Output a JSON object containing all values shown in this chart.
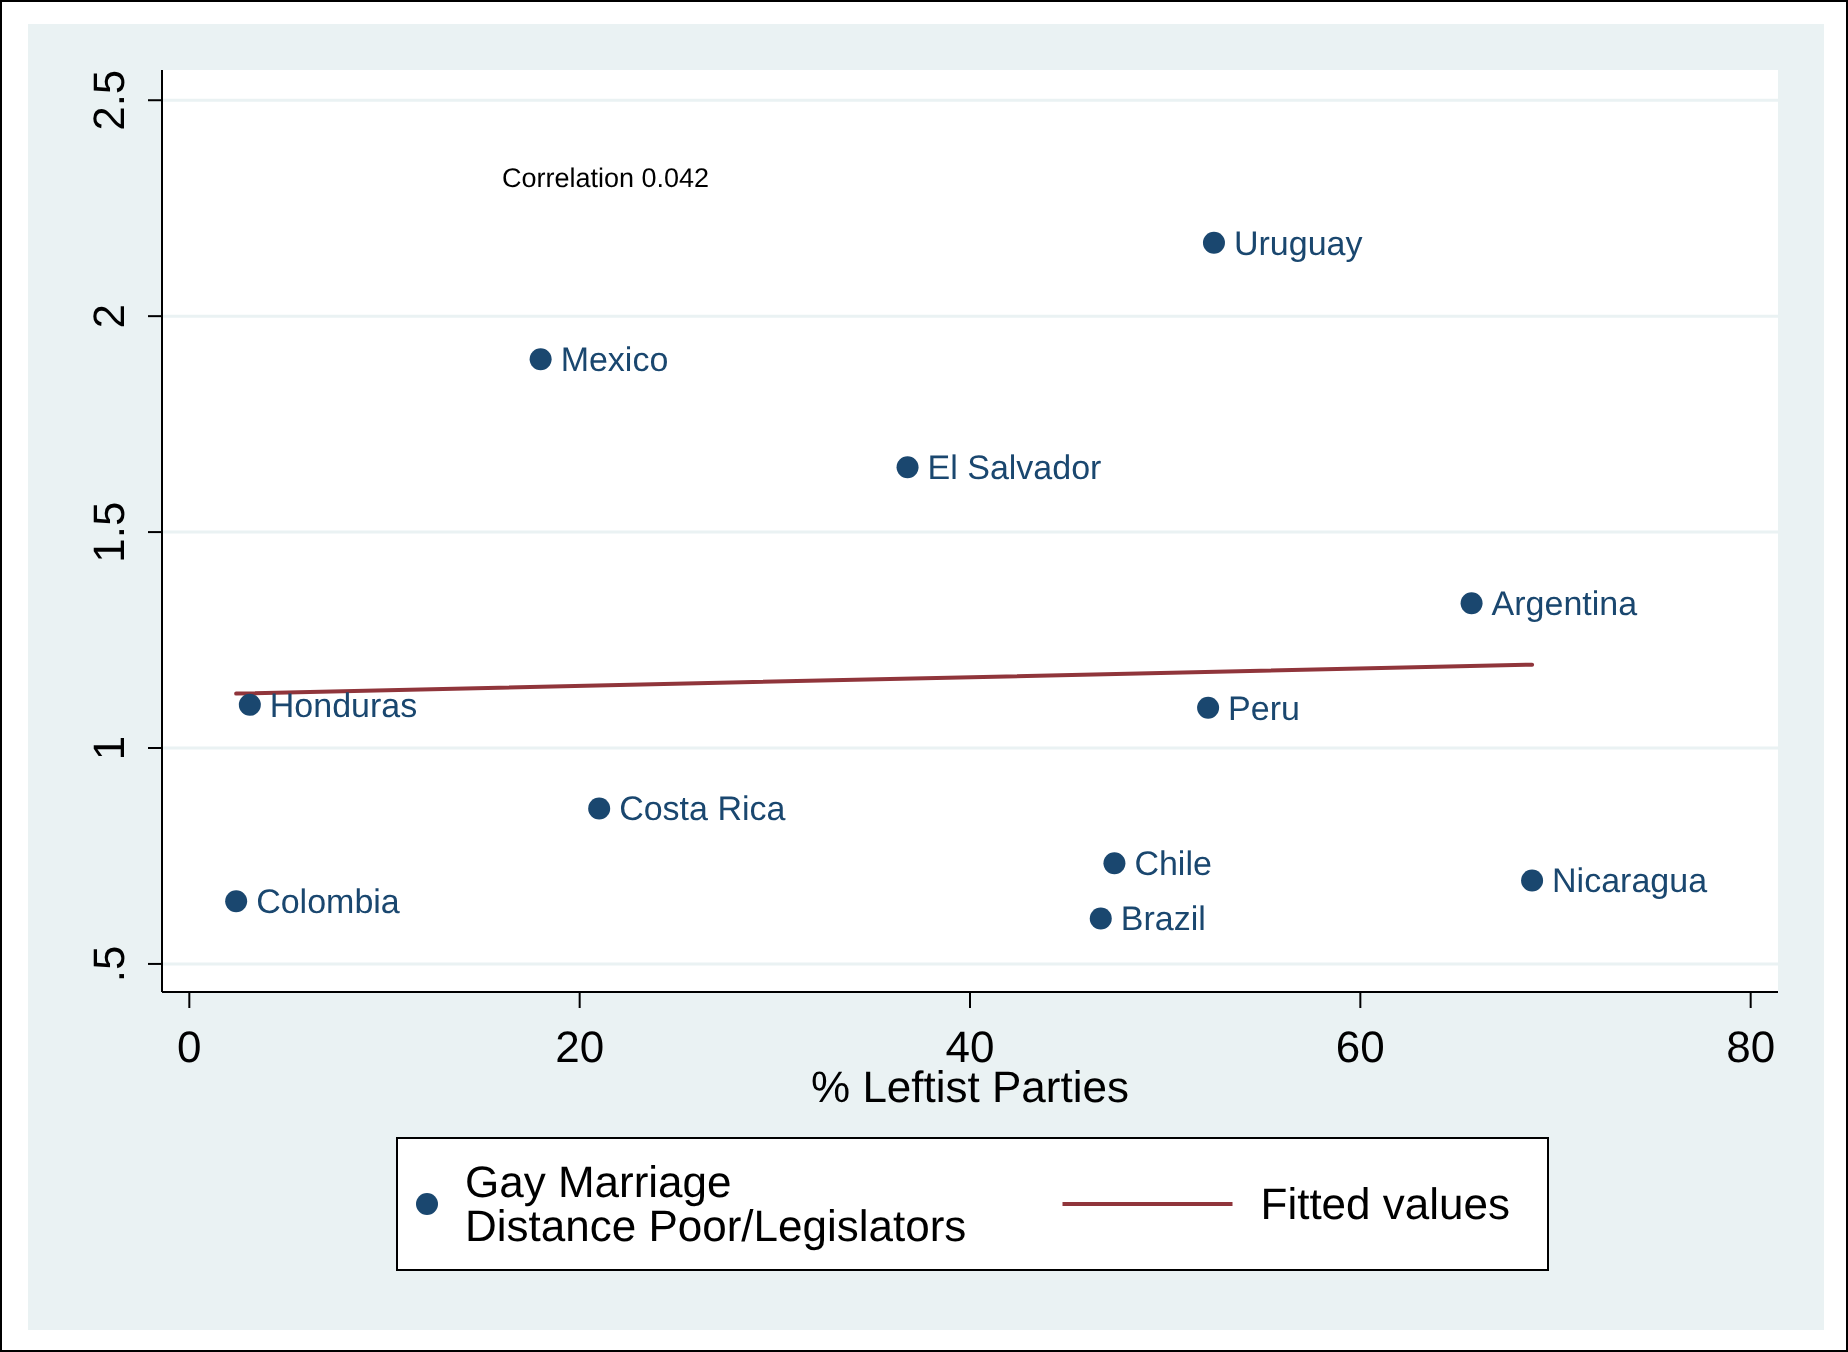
{
  "chart_data": {
    "type": "scatter",
    "xlabel": "% Leftist Parties",
    "xlim": [
      -1.4,
      81.4
    ],
    "ylim": [
      0.435,
      2.57
    ],
    "xticks": [
      0,
      20,
      40,
      60,
      80
    ],
    "yticks": [
      {
        "value": 0.5,
        "label": ".5"
      },
      1,
      1.5,
      2,
      2.5
    ],
    "grid": "y",
    "legend": "bottom",
    "series": [
      {
        "name": "Gay Marriage\nDistance Poor/Legislators",
        "marker": "circle",
        "color": "#1a476f",
        "x": [
          18,
          52.5,
          36.8,
          3.1,
          21,
          2.4,
          65.7,
          52.2,
          47.4,
          46.7,
          68.8
        ],
        "values": [
          1.9,
          2.17,
          1.65,
          1.1,
          0.86,
          0.645,
          1.335,
          1.093,
          0.733,
          0.605,
          0.693
        ]
      },
      {
        "name": "Fitted values",
        "type": "line",
        "color": "#90353b",
        "x": [
          2.4,
          68.8
        ],
        "values": [
          1.126,
          1.193
        ]
      }
    ],
    "annotations": [
      "Correlation 0.042",
      {
        "text": "Mexico",
        "x": 18,
        "y": 1.9
      },
      {
        "text": "Uruguay",
        "x": 52.5,
        "y": 2.17
      },
      {
        "text": "El Salvador",
        "x": 36.8,
        "y": 1.65
      },
      {
        "text": "Honduras",
        "x": 3.1,
        "y": 1.1
      },
      {
        "text": "Costa Rica",
        "x": 21,
        "y": 0.86
      },
      {
        "text": "Colombia",
        "x": 2.4,
        "y": 0.645
      },
      {
        "text": "Argentina",
        "x": 65.7,
        "y": 1.335
      },
      {
        "text": "Peru",
        "x": 52.2,
        "y": 1.093
      },
      {
        "text": "Chile",
        "x": 47.4,
        "y": 0.733
      },
      {
        "text": "Brazil",
        "x": 46.7,
        "y": 0.605
      },
      {
        "text": "Nicaragua",
        "x": 68.8,
        "y": 0.693
      }
    ]
  }
}
